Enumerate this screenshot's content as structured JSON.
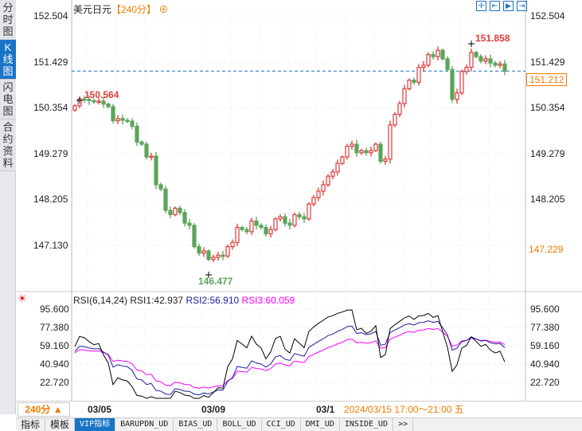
{
  "sidebar": {
    "tabs": [
      "分时图",
      "K线图",
      "闪电图",
      "合约资料"
    ],
    "active": 1
  },
  "header": {
    "symbol": "美元日元",
    "period": "【240分】",
    "add_icon": "plus-circle-icon"
  },
  "toolbar": {
    "icons": [
      "crosshair-icon",
      "zoom-range-icon",
      "play-forward-icon",
      "move-to-end-icon"
    ]
  },
  "price_axis": {
    "ticks": [
      "152.504",
      "151.429",
      "150.354",
      "149.279",
      "148.205",
      "147.130"
    ],
    "current": "151.212",
    "cursor": "147.229"
  },
  "annotations": {
    "high1": "150.564",
    "high2": "151.858",
    "low": "146.477"
  },
  "rsi": {
    "label": "RSI(6,14,24)",
    "rsi1": "RSI1:42.937",
    "rsi2": "RSI2:56.910",
    "rsi3": "RSI3:60.059",
    "ticks": [
      "95.600",
      "77.380",
      "59.160",
      "40.940",
      "22.720"
    ],
    "colors": {
      "rsi1": "#000000",
      "rsi2": "#1c1c9c",
      "rsi3": "#ff00ff"
    }
  },
  "xaxis": {
    "period_button": "240分 ▲",
    "labels": [
      "03/05",
      "03/09",
      "03/1"
    ],
    "cursor_time": "2024/03/15 17:00～21:00 五"
  },
  "bottom_tabs": [
    "指标",
    "模板",
    "VIP指标",
    "BARUPDN_UD",
    "BIAS_UD",
    "BOLL_UD",
    "CCI_UD",
    "DMI_UD",
    "INSIDE_UD",
    ">>"
  ],
  "colors": {
    "up": "#e03a3a",
    "down": "#5aa55a",
    "accent": "#1a74c6",
    "highlight": "#f07c00"
  },
  "chart_data": {
    "type": "candlestick",
    "title": "美元日元 240分",
    "ylim": [
      146.3,
      152.6
    ],
    "closes": [
      150.4,
      150.56,
      150.55,
      150.52,
      150.5,
      150.51,
      150.44,
      150.38,
      150.05,
      150.1,
      150.06,
      150.04,
      149.92,
      149.55,
      149.5,
      149.2,
      149.22,
      148.55,
      148.45,
      147.95,
      147.85,
      148.0,
      147.9,
      147.65,
      147.6,
      147.1,
      146.95,
      147.0,
      146.8,
      146.85,
      146.9,
      146.88,
      147.1,
      147.2,
      147.55,
      147.5,
      147.45,
      147.7,
      147.6,
      147.55,
      147.4,
      147.5,
      147.75,
      147.8,
      147.65,
      147.6,
      147.85,
      147.8,
      147.75,
      148.1,
      148.25,
      148.4,
      148.55,
      148.75,
      148.85,
      149.05,
      149.2,
      149.45,
      149.5,
      149.3,
      149.35,
      149.3,
      149.35,
      149.5,
      149.1,
      149.15,
      149.95,
      150.2,
      150.45,
      150.8,
      151.0,
      150.95,
      151.3,
      151.35,
      151.6,
      151.55,
      151.7,
      151.5,
      151.25,
      150.55,
      150.7,
      151.2,
      151.3,
      151.65,
      151.55,
      151.45,
      151.5,
      151.4,
      151.35,
      151.38,
      151.21
    ],
    "first_open": 150.3,
    "rsi_periods": [
      6,
      14,
      24
    ],
    "rsi_ylim": [
      15,
      100
    ]
  }
}
